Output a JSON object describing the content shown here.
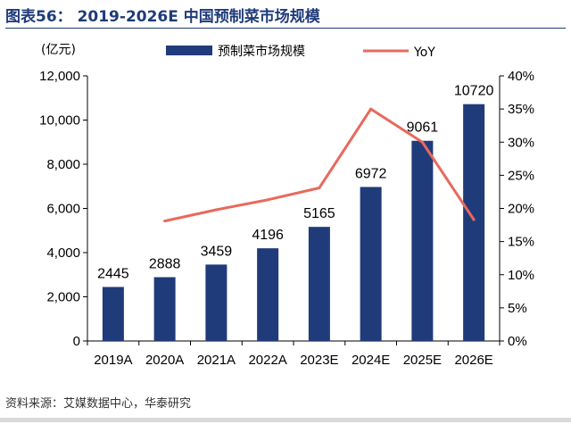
{
  "header": {
    "title": "图表56： 2019-2026E 中国预制菜市场规模"
  },
  "footer": {
    "source": "资料来源：艾媒数据中心，华泰研究"
  },
  "chart_data": {
    "type": "bar",
    "categories": [
      "2019A",
      "2020A",
      "2021A",
      "2022A",
      "2023E",
      "2024E",
      "2025E",
      "2026E"
    ],
    "series": [
      {
        "name": "预制菜市场规模",
        "kind": "bar",
        "axis": "left",
        "color": "#1f3b7a",
        "values": [
          2445,
          2888,
          3459,
          4196,
          5165,
          6972,
          9061,
          10720
        ],
        "labels": [
          "2445",
          "2888",
          "3459",
          "4196",
          "5165",
          "6972",
          "9061",
          "10720"
        ]
      },
      {
        "name": "YoY",
        "kind": "line",
        "axis": "right",
        "color": "#e8695c",
        "values": [
          null,
          18.1,
          19.8,
          21.3,
          23.1,
          35.0,
          30.0,
          18.3
        ]
      }
    ],
    "ylabel": "(亿元)",
    "ylim": [
      0,
      12000
    ],
    "yticks": [
      0,
      2000,
      4000,
      6000,
      8000,
      10000,
      12000
    ],
    "ytick_labels": [
      "0",
      "2,000",
      "4,000",
      "6,000",
      "8,000",
      "10,000",
      "12,000"
    ],
    "y2lim": [
      0,
      40
    ],
    "y2ticks": [
      0,
      5,
      10,
      15,
      20,
      25,
      30,
      35,
      40
    ],
    "y2tick_labels": [
      "0%",
      "5%",
      "10%",
      "15%",
      "20%",
      "25%",
      "30%",
      "35%",
      "40%"
    ],
    "legend": {
      "placement": "top",
      "entries": [
        "预制菜市场规模",
        "YoY"
      ]
    },
    "grid": false
  }
}
